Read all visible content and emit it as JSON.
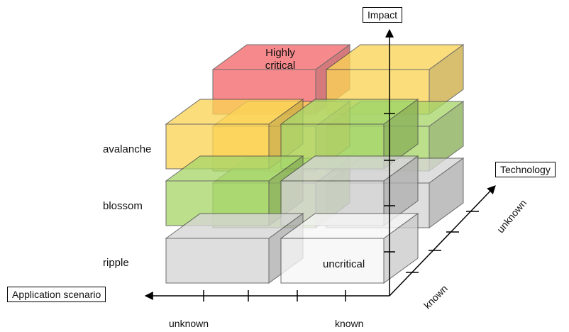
{
  "axes": {
    "impact": "Impact",
    "technology": "Technology",
    "application": "Application scenario"
  },
  "rows": {
    "avalanche": "avalanche",
    "blossom": "blossom",
    "ripple": "ripple"
  },
  "application_ticks": {
    "unknown": "unknown",
    "known": "known"
  },
  "technology_ticks": {
    "known": "known",
    "unknown": "unknown"
  },
  "cells": {
    "highly_critical": "Highly critical",
    "uncritical": "uncritical"
  },
  "colors": {
    "red": "#f4686b",
    "yellow": "#fbd457",
    "green": "#a8d76b",
    "gray": "#d6d6d6",
    "white": "#f7f7f7"
  }
}
